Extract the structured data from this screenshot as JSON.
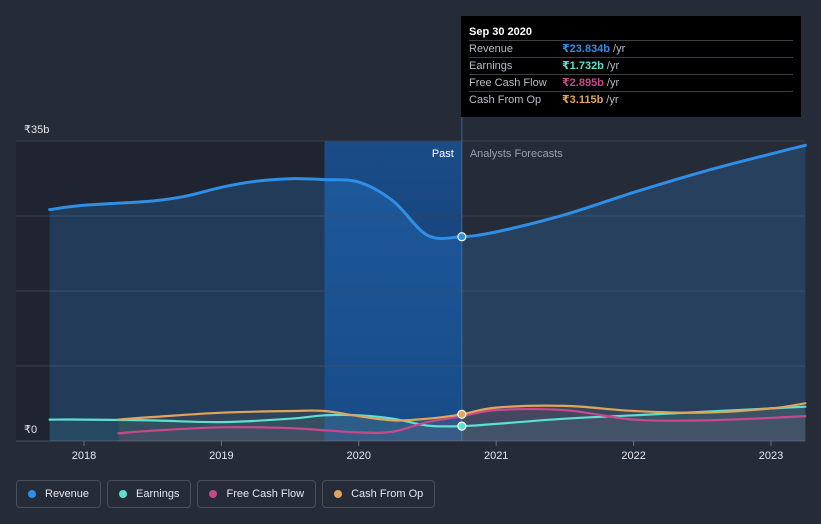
{
  "chart_data": {
    "type": "line",
    "currency_unit": "₹ billions",
    "y_axis": {
      "ticks": [
        {
          "label": "₹35b",
          "value": 35
        },
        {
          "label": "₹0",
          "value": 0
        }
      ],
      "ylim": [
        0,
        35
      ]
    },
    "x_axis": {
      "ticks": [
        "2018",
        "2019",
        "2020",
        "2021",
        "2022",
        "2023"
      ],
      "xlim": [
        2017.72,
        2023.25
      ]
    },
    "past_label": "Past",
    "forecast_label": "Analysts Forecasts",
    "divider_x": 2020.75,
    "highlight_start_x": 2019.75,
    "series": [
      {
        "name": "Revenue",
        "color": "#2f8ee6",
        "points": [
          [
            2017.75,
            27.0
          ],
          [
            2018.0,
            27.5
          ],
          [
            2018.5,
            28.0
          ],
          [
            2018.75,
            28.6
          ],
          [
            2019.0,
            29.6
          ],
          [
            2019.25,
            30.3
          ],
          [
            2019.5,
            30.6
          ],
          [
            2019.75,
            30.5
          ],
          [
            2020.0,
            30.2
          ],
          [
            2020.25,
            28.0
          ],
          [
            2020.5,
            24.0
          ],
          [
            2020.75,
            23.834
          ],
          [
            2021.0,
            24.4
          ],
          [
            2021.5,
            26.4
          ],
          [
            2022.0,
            29.0
          ],
          [
            2022.5,
            31.4
          ],
          [
            2023.0,
            33.5
          ],
          [
            2023.25,
            34.5
          ]
        ]
      },
      {
        "name": "Earnings",
        "color": "#5ce0cf",
        "points": [
          [
            2017.75,
            2.5
          ],
          [
            2018.0,
            2.5
          ],
          [
            2018.5,
            2.4
          ],
          [
            2019.0,
            2.2
          ],
          [
            2019.5,
            2.6
          ],
          [
            2019.75,
            3.0
          ],
          [
            2020.0,
            3.0
          ],
          [
            2020.25,
            2.6
          ],
          [
            2020.5,
            1.8
          ],
          [
            2020.75,
            1.732
          ],
          [
            2021.0,
            2.0
          ],
          [
            2021.5,
            2.6
          ],
          [
            2022.0,
            3.0
          ],
          [
            2022.5,
            3.4
          ],
          [
            2023.0,
            3.8
          ],
          [
            2023.25,
            4.0
          ]
        ]
      },
      {
        "name": "Free Cash Flow",
        "color": "#c64a8a",
        "points": [
          [
            2018.25,
            0.9
          ],
          [
            2018.5,
            1.2
          ],
          [
            2019.0,
            1.6
          ],
          [
            2019.5,
            1.5
          ],
          [
            2020.0,
            1.0
          ],
          [
            2020.25,
            1.1
          ],
          [
            2020.5,
            2.2
          ],
          [
            2020.75,
            2.895
          ],
          [
            2021.0,
            3.6
          ],
          [
            2021.5,
            3.6
          ],
          [
            2022.0,
            2.5
          ],
          [
            2022.5,
            2.4
          ],
          [
            2023.0,
            2.7
          ],
          [
            2023.25,
            2.9
          ]
        ]
      },
      {
        "name": "Cash From Op",
        "color": "#e0a55c",
        "points": [
          [
            2018.25,
            2.5
          ],
          [
            2018.5,
            2.8
          ],
          [
            2019.0,
            3.3
          ],
          [
            2019.5,
            3.5
          ],
          [
            2019.75,
            3.5
          ],
          [
            2020.0,
            2.9
          ],
          [
            2020.25,
            2.4
          ],
          [
            2020.5,
            2.6
          ],
          [
            2020.75,
            3.115
          ],
          [
            2021.0,
            3.9
          ],
          [
            2021.5,
            4.1
          ],
          [
            2022.0,
            3.5
          ],
          [
            2022.5,
            3.3
          ],
          [
            2023.0,
            3.8
          ],
          [
            2023.25,
            4.4
          ]
        ]
      }
    ],
    "markers": [
      {
        "series": "Revenue",
        "x": 2020.75,
        "y": 23.834
      },
      {
        "series": "Cash From Op",
        "x": 2020.75,
        "y": 3.115
      },
      {
        "series": "Earnings",
        "x": 2020.75,
        "y": 1.732
      }
    ]
  },
  "tooltip": {
    "date": "Sep 30 2020",
    "rows": [
      {
        "label": "Revenue",
        "value": "₹23.834b",
        "unit": "/yr",
        "color": "#2f8ee6"
      },
      {
        "label": "Earnings",
        "value": "₹1.732b",
        "unit": "/yr",
        "color": "#5ce0cf"
      },
      {
        "label": "Free Cash Flow",
        "value": "₹2.895b",
        "unit": "/yr",
        "color": "#c64a8a"
      },
      {
        "label": "Cash From Op",
        "value": "₹3.115b",
        "unit": "/yr",
        "color": "#e0a55c"
      }
    ]
  },
  "legend": [
    {
      "label": "Revenue",
      "color": "#2f8ee6"
    },
    {
      "label": "Earnings",
      "color": "#5ce0cf"
    },
    {
      "label": "Free Cash Flow",
      "color": "#c64a8a"
    },
    {
      "label": "Cash From Op",
      "color": "#e0a55c"
    }
  ]
}
